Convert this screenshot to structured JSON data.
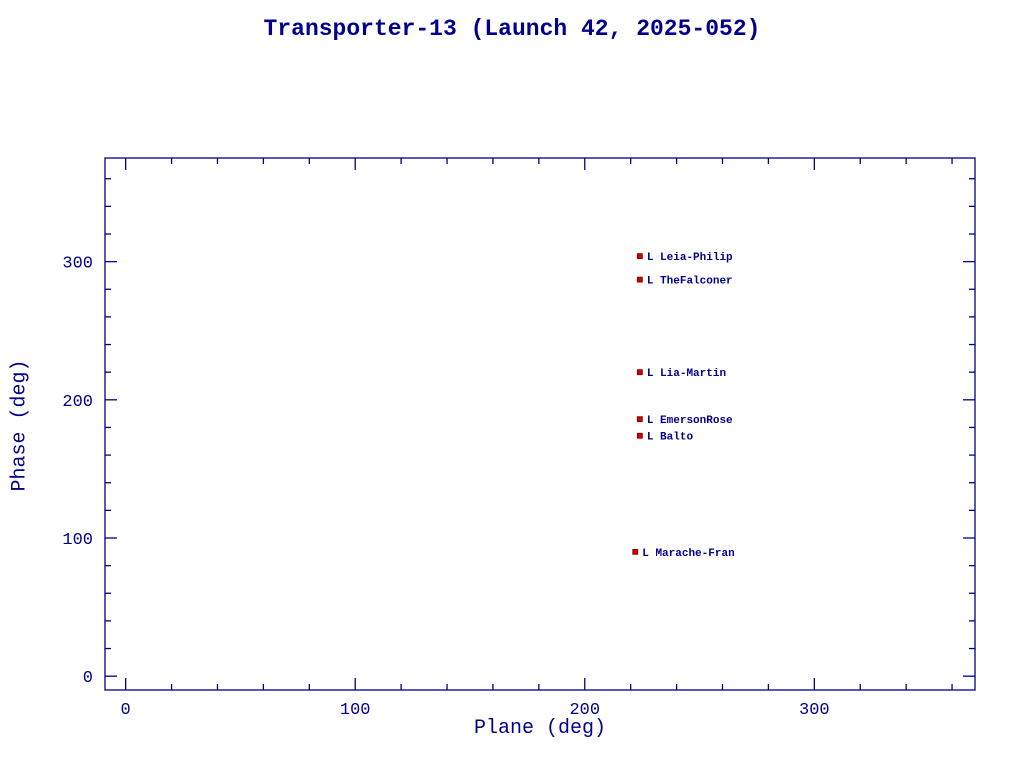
{
  "page": {
    "background": "#ffffff"
  },
  "chart_data": {
    "type": "scatter",
    "title": "Transporter-13 (Launch 42, 2025-052)",
    "xlabel": "Plane (deg)",
    "ylabel": "Phase (deg)",
    "xlim": [
      -9,
      370
    ],
    "ylim": [
      -10,
      375
    ],
    "x_major_ticks": [
      0,
      100,
      200,
      300
    ],
    "y_major_ticks": [
      0,
      100,
      200,
      300
    ],
    "minor_tick_step": 20,
    "grid": false,
    "legend": "none",
    "axis_color": "#00008b",
    "marker_color": "#cc0000",
    "marker_edge_color": "#800000",
    "label_color": "#00008b",
    "marker_shape": "square",
    "points": [
      {
        "x": 224,
        "y": 304,
        "label": "L Leia-Philip"
      },
      {
        "x": 224,
        "y": 287,
        "label": "L TheFalconer"
      },
      {
        "x": 224,
        "y": 220,
        "label": "L Lia-Martin"
      },
      {
        "x": 224,
        "y": 186,
        "label": "L EmersonRose"
      },
      {
        "x": 224,
        "y": 174,
        "label": "L Balto"
      },
      {
        "x": 222,
        "y": 90,
        "label": "L Marache-Fran"
      }
    ]
  }
}
